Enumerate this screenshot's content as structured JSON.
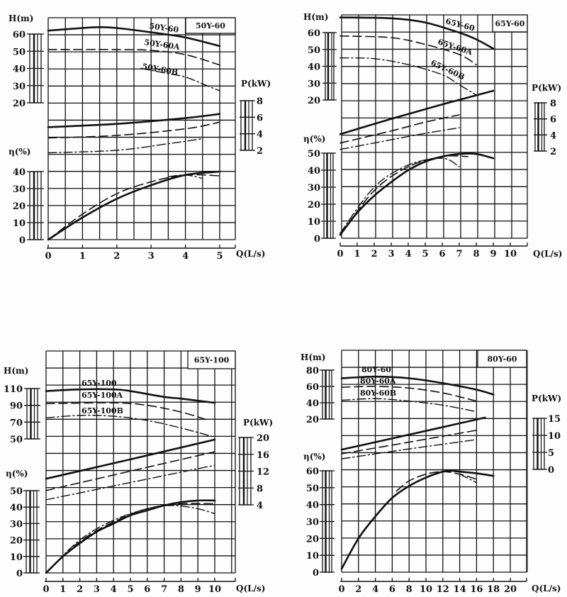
{
  "colors": {
    "ink": "#111111",
    "paper": "#fdfdfd"
  },
  "chart_data": [
    {
      "type": "line",
      "title": "50Y-60",
      "xlabel": "Q(L/s)",
      "x_ticks": [
        0,
        1,
        2,
        3,
        4,
        5
      ],
      "axes": {
        "H": {
          "label": "H(m)",
          "ticks": [
            20,
            30,
            40,
            50,
            60
          ]
        },
        "P": {
          "label": "P(kW)",
          "ticks": [
            2,
            4,
            6,
            8
          ]
        },
        "eta": {
          "label": "η(%)",
          "ticks": [
            0,
            10,
            20,
            30,
            40
          ]
        }
      },
      "series": [
        {
          "model": "50Y-60",
          "style": "solid",
          "H": [
            [
              0,
              62
            ],
            [
              1,
              63.5
            ],
            [
              1.5,
              64
            ],
            [
              2,
              63.5
            ],
            [
              3,
              61
            ],
            [
              4,
              58
            ],
            [
              5,
              53
            ]
          ],
          "P": [
            [
              0,
              4.8
            ],
            [
              2,
              5.2
            ],
            [
              4,
              5.9
            ],
            [
              5,
              6.4
            ]
          ],
          "eta": [
            [
              0,
              0
            ],
            [
              1,
              13
            ],
            [
              2,
              24
            ],
            [
              3,
              32
            ],
            [
              4,
              38
            ],
            [
              5,
              40
            ]
          ]
        },
        {
          "model": "50Y-60A",
          "style": "dash",
          "H": [
            [
              0,
              51
            ],
            [
              2,
              51
            ],
            [
              3,
              50.5
            ],
            [
              4,
              48
            ],
            [
              5,
              42
            ]
          ],
          "P": [
            [
              0,
              3.5
            ],
            [
              2,
              3.8
            ],
            [
              4,
              4.6
            ],
            [
              5,
              5.4
            ]
          ],
          "eta": [
            [
              0,
              0
            ],
            [
              1,
              15
            ],
            [
              2,
              27
            ],
            [
              3,
              34
            ],
            [
              4,
              38
            ],
            [
              5,
              37.5
            ]
          ]
        },
        {
          "model": "50Y-60B",
          "style": "dashdot",
          "H": [
            [
              2.7,
              40
            ],
            [
              3.5,
              37
            ],
            [
              4,
              35
            ],
            [
              4.5,
              31
            ],
            [
              5,
              27
            ]
          ],
          "P": [
            [
              0,
              1.7
            ],
            [
              2,
              2.0
            ],
            [
              3.5,
              2.8
            ],
            [
              4.5,
              3.4
            ]
          ],
          "eta": [
            [
              3.5,
              37
            ],
            [
              4,
              38
            ],
            [
              4.5,
              36
            ]
          ]
        }
      ]
    },
    {
      "type": "line",
      "title": "65Y-60",
      "xlabel": "Q(L/s)",
      "x_ticks": [
        0,
        1,
        2,
        3,
        4,
        5,
        6,
        7,
        8,
        9,
        10
      ],
      "axes": {
        "H": {
          "label": "H(m)",
          "ticks": [
            20,
            30,
            40,
            50,
            60
          ]
        },
        "P": {
          "label": "P(kW)",
          "ticks": [
            2,
            4,
            6,
            8
          ]
        },
        "eta": {
          "label": "η(%)",
          "ticks": [
            0,
            10,
            20,
            30,
            40,
            50
          ]
        }
      },
      "series": [
        {
          "model": "65Y-60",
          "style": "solid",
          "H": [
            [
              0,
              69
            ],
            [
              3,
              68.5
            ],
            [
              5,
              66
            ],
            [
              7,
              60
            ],
            [
              8,
              56
            ],
            [
              9,
              50.5
            ]
          ],
          "P": [
            [
              0,
              4.1
            ],
            [
              3,
              6.0
            ],
            [
              6,
              7.8
            ],
            [
              9,
              9.5
            ]
          ],
          "eta": [
            [
              0,
              2
            ],
            [
              1,
              15
            ],
            [
              2,
              25
            ],
            [
              3,
              33
            ],
            [
              4,
              40
            ],
            [
              5,
              45
            ],
            [
              6,
              48
            ],
            [
              7,
              49.5
            ],
            [
              8,
              49.5
            ],
            [
              9,
              47
            ]
          ]
        },
        {
          "model": "65Y-60A",
          "style": "dash",
          "H": [
            [
              0,
              58
            ],
            [
              3,
              57
            ],
            [
              5,
              53
            ],
            [
              7,
              47
            ],
            [
              8,
              41
            ]
          ],
          "P": [
            [
              0,
              3.0
            ],
            [
              3,
              4.5
            ],
            [
              5,
              5.6
            ],
            [
              7,
              6.5
            ]
          ],
          "eta": [
            [
              0,
              2
            ],
            [
              2,
              28
            ],
            [
              4,
              42
            ],
            [
              6,
              48
            ],
            [
              7.5,
              48
            ]
          ]
        },
        {
          "model": "65Y-60B",
          "style": "dashdot",
          "H": [
            [
              0,
              45
            ],
            [
              2,
              44.5
            ],
            [
              4,
              41
            ],
            [
              6,
              35
            ],
            [
              7,
              29
            ],
            [
              8,
              23
            ]
          ],
          "P": [
            [
              0,
              2.2
            ],
            [
              3,
              3.4
            ],
            [
              5,
              4.2
            ],
            [
              7,
              4.9
            ]
          ],
          "eta": [
            [
              0,
              3
            ],
            [
              2,
              30
            ],
            [
              4,
              43
            ],
            [
              6,
              47
            ],
            [
              7,
              42
            ]
          ]
        }
      ]
    },
    {
      "type": "line",
      "title": "65Y-100",
      "xlabel": "Q(L/s)",
      "x_ticks": [
        0,
        1,
        2,
        3,
        4,
        5,
        6,
        7,
        8,
        9,
        10
      ],
      "axes": {
        "H": {
          "label": "H(m)",
          "ticks": [
            50,
            70,
            90,
            110
          ]
        },
        "P": {
          "label": "P(kW)",
          "ticks": [
            4,
            8,
            12,
            16,
            20
          ]
        },
        "eta": {
          "label": "η(%)",
          "ticks": [
            0,
            10,
            20,
            30,
            40,
            50
          ]
        }
      },
      "series": [
        {
          "model": "65Y-100",
          "style": "solid",
          "H": [
            [
              0,
              107
            ],
            [
              2,
              109
            ],
            [
              4,
              109
            ],
            [
              5,
              107
            ],
            [
              7,
              100
            ],
            [
              8,
              98
            ],
            [
              10,
              93
            ]
          ],
          "P": [
            [
              0,
              10.2
            ],
            [
              5,
              14.8
            ],
            [
              10,
              19.5
            ]
          ],
          "eta": [
            [
              0,
              0
            ],
            [
              1,
              10
            ],
            [
              2,
              18
            ],
            [
              3,
              25
            ],
            [
              4,
              30
            ],
            [
              5,
              35
            ],
            [
              6,
              38
            ],
            [
              7,
              41
            ],
            [
              8,
              43
            ],
            [
              9,
              44
            ],
            [
              10,
              44
            ]
          ]
        },
        {
          "model": "65Y-100A",
          "style": "dash",
          "H": [
            [
              0,
              92
            ],
            [
              4,
              93
            ],
            [
              6,
              90
            ],
            [
              8,
              82
            ],
            [
              9.5,
              73
            ]
          ],
          "P": [
            [
              0,
              7.4
            ],
            [
              5,
              12
            ],
            [
              10,
              16.6
            ]
          ],
          "eta": [
            [
              0,
              0
            ],
            [
              2,
              19
            ],
            [
              4,
              31
            ],
            [
              6,
              39
            ],
            [
              8,
              42
            ],
            [
              10,
              42
            ]
          ]
        },
        {
          "model": "65Y-100B",
          "style": "dashdot",
          "H": [
            [
              0,
              75
            ],
            [
              2,
              78
            ],
            [
              4,
              77
            ],
            [
              6,
              72
            ],
            [
              8,
              63
            ],
            [
              10,
              52
            ]
          ],
          "P": [
            [
              0,
              5.2
            ],
            [
              5,
              9.3
            ],
            [
              10,
              13.4
            ]
          ],
          "eta": [
            [
              0,
              0
            ],
            [
              2,
              20
            ],
            [
              4,
              32
            ],
            [
              6,
              39
            ],
            [
              7.5,
              41
            ],
            [
              9,
              39
            ],
            [
              10,
              36
            ]
          ]
        }
      ]
    },
    {
      "type": "line",
      "title": "80Y-60",
      "xlabel": "Q(L/s)",
      "x_ticks": [
        0,
        2,
        4,
        6,
        8,
        10,
        12,
        14,
        16,
        18,
        20
      ],
      "axes": {
        "H": {
          "label": "H(m)",
          "ticks": [
            20,
            40,
            60,
            80
          ]
        },
        "P": {
          "label": "P(kW)",
          "ticks": [
            0,
            5,
            10,
            15
          ]
        },
        "eta": {
          "label": "η(%)",
          "ticks": [
            0,
            10,
            20,
            30,
            40,
            50,
            60
          ]
        }
      },
      "series": [
        {
          "model": "80Y-60",
          "style": "solid",
          "H": [
            [
              0,
              70
            ],
            [
              4,
              72
            ],
            [
              8,
              70
            ],
            [
              12,
              64
            ],
            [
              16,
              56
            ],
            [
              18,
              50
            ]
          ],
          "P": [
            [
              0,
              5.8
            ],
            [
              8,
              10.2
            ],
            [
              17,
              15.2
            ]
          ],
          "eta": [
            [
              0,
              2
            ],
            [
              2,
              20
            ],
            [
              4,
              33
            ],
            [
              6,
              44
            ],
            [
              8,
              51
            ],
            [
              10,
              56
            ],
            [
              12,
              59.5
            ],
            [
              13,
              60
            ],
            [
              14,
              59.5
            ],
            [
              16,
              58.5
            ],
            [
              18,
              57
            ]
          ]
        },
        {
          "model": "80Y-60A",
          "style": "dash",
          "H": [
            [
              0,
              59
            ],
            [
              4,
              60
            ],
            [
              8,
              58
            ],
            [
              12,
              52
            ],
            [
              16,
              42
            ]
          ],
          "P": [
            [
              0,
              4.6
            ],
            [
              8,
              8.0
            ],
            [
              16,
              11.5
            ]
          ],
          "eta": [
            [
              6.5,
              48
            ],
            [
              8,
              54
            ],
            [
              10,
              58
            ],
            [
              12,
              59.5
            ],
            [
              14,
              58
            ],
            [
              16,
              55
            ]
          ]
        },
        {
          "model": "80Y-60B",
          "style": "dashdot",
          "H": [
            [
              0,
              43
            ],
            [
              4,
              45
            ],
            [
              8,
              42
            ],
            [
              12,
              37
            ],
            [
              16,
              29
            ]
          ],
          "P": [
            [
              0,
              3.1
            ],
            [
              8,
              6.0
            ],
            [
              16,
              8.75
            ]
          ],
          "eta": [
            [
              14,
              58
            ],
            [
              16,
              53
            ]
          ]
        }
      ]
    }
  ]
}
